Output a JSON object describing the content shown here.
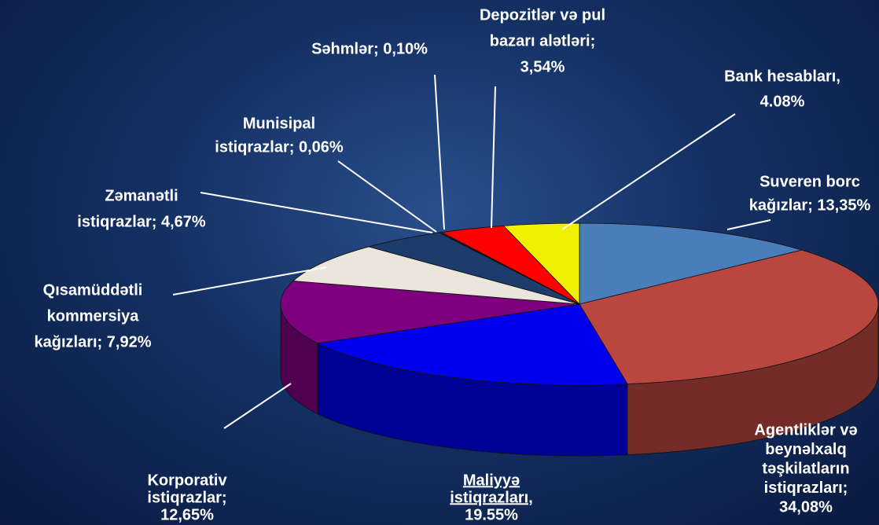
{
  "chart_data": {
    "type": "pie3d",
    "labels": [
      [
        "Suveren borc",
        "kağızlar; 13,35%"
      ],
      [
        "Agentliklər və",
        "beynəlxalq",
        "təşkilatların",
        "istiqrazları;",
        "34,08%"
      ],
      [
        "Maliyyə",
        "istiqrazları,",
        "19.55%"
      ],
      [
        "Korporativ",
        "istiqrazlar;",
        "12,65%"
      ],
      [
        "Qısamüddətli",
        "kommersiya",
        "kağızları; 7,92%"
      ],
      [
        "Zəmanətli",
        "istiqrazlar; 4,67%"
      ],
      [
        "Munisipal",
        "istiqrazlar; 0,06%"
      ],
      [
        "Səhmlər; 0,10%"
      ],
      [
        "Depozitlər və pul",
        "bazarı alətləri;",
        "3,54%"
      ],
      [
        "Bank hesabları,",
        "4.08%"
      ]
    ],
    "values": [
      13.35,
      34.08,
      19.55,
      12.65,
      7.92,
      4.67,
      0.06,
      0.1,
      3.54,
      4.08
    ],
    "colors": [
      "#4a7ebb",
      "#b9473f",
      "#0000ee",
      "#7f007f",
      "#ebe6dc",
      "#1d3c6c",
      "#2d4d7c",
      "#3a5a8a",
      "#ff0000",
      "#f0f000"
    ]
  }
}
